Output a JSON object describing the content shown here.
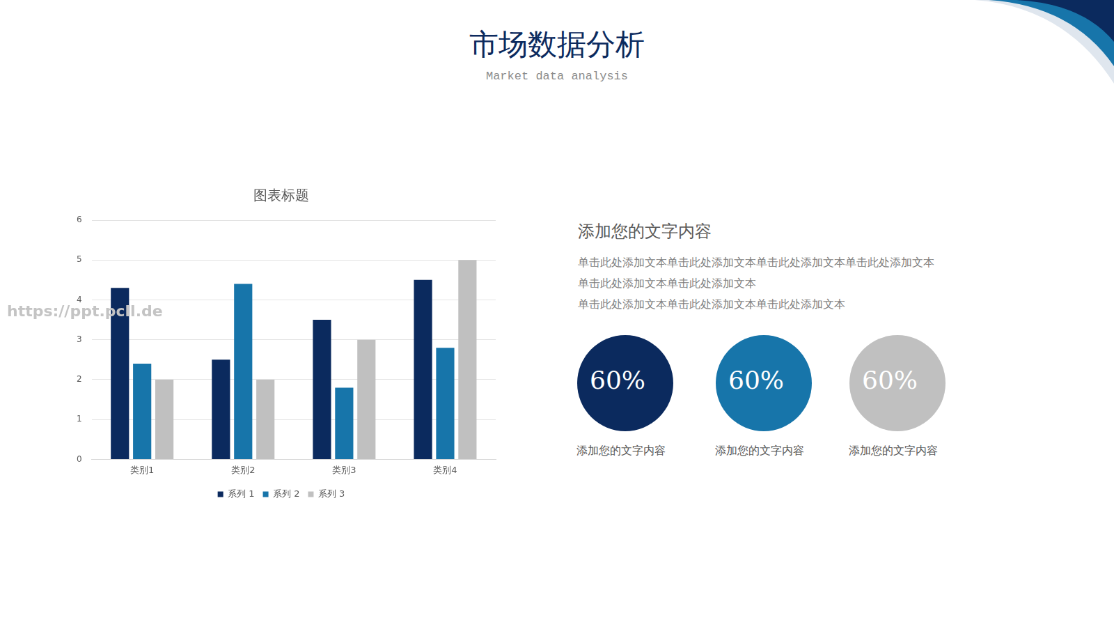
{
  "header": {
    "title": "市场数据分析",
    "subtitle": "Market data analysis"
  },
  "chart_data": {
    "type": "bar",
    "title": "图表标题",
    "categories": [
      "类别1",
      "类别2",
      "类别3",
      "类别4"
    ],
    "series": [
      {
        "name": "系列 1",
        "color": "#0b2a5e",
        "values": [
          4.3,
          2.5,
          3.5,
          4.5
        ]
      },
      {
        "name": "系列 2",
        "color": "#1775aa",
        "values": [
          2.4,
          4.4,
          1.8,
          2.8
        ]
      },
      {
        "name": "系列 3",
        "color": "#c0c0c0",
        "values": [
          2,
          2,
          3,
          5
        ]
      }
    ],
    "ylim": [
      0,
      6
    ],
    "yticks": [
      0,
      1,
      2,
      3,
      4,
      5,
      6
    ],
    "grid": true,
    "legend": "bottom"
  },
  "text_panel": {
    "heading": "添加您的文字内容",
    "lines": [
      "单击此处添加文本单击此处添加文本单击此处添加文本单击此处添加文本",
      "单击此处添加文本单击此处添加文本",
      "单击此处添加文本单击此处添加文本单击此处添加文本"
    ],
    "circles": [
      {
        "text": "60%",
        "color": "#0b2a5e",
        "caption": "添加您的文字内容"
      },
      {
        "text": "60%",
        "color": "#1775aa",
        "caption": "添加您的文字内容"
      },
      {
        "text": "60%",
        "color": "#c0c0c0",
        "caption": "添加您的文字内容"
      }
    ]
  },
  "watermark": "https://ppt.pcll.de"
}
